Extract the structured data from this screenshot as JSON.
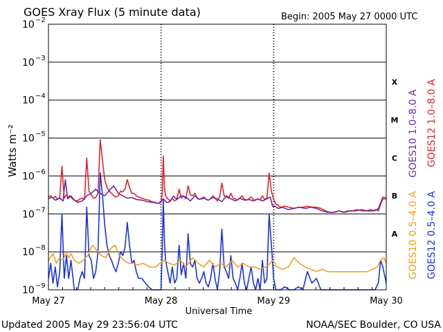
{
  "header": {
    "title": "GOES Xray Flux (5 minute data)",
    "begin": "Begin:  2005 May 27 0000 UTC"
  },
  "footer": {
    "updated": "Updated 2005 May 29 23:56:04 UTC",
    "credit": "NOAA/SEC Boulder, CO USA"
  },
  "chart_data": {
    "type": "line",
    "title": "GOES Xray Flux (5 minute data)",
    "xlabel": "Universal Time",
    "ylabel": "Watts m⁻²",
    "yscale": "log",
    "ylim": [
      1e-09,
      0.01
    ],
    "x_unit": "days since 2005 May 27 0000 UTC",
    "xlim": [
      0,
      3
    ],
    "x_ticks": [
      {
        "label": "May 27",
        "x": 0
      },
      {
        "label": "May 28",
        "x": 1
      },
      {
        "label": "May 29",
        "x": 2
      },
      {
        "label": "May 30",
        "x": 3
      }
    ],
    "y_ticks": [
      {
        "base": "10",
        "exp": "−2",
        "value": 0.01
      },
      {
        "base": "10",
        "exp": "−3",
        "value": 0.001
      },
      {
        "base": "10",
        "exp": "−4",
        "value": 0.0001
      },
      {
        "base": "10",
        "exp": "−5",
        "value": 1e-05
      },
      {
        "base": "10",
        "exp": "−6",
        "value": 1e-06
      },
      {
        "base": "10",
        "exp": "−7",
        "value": 1e-07
      },
      {
        "base": "10",
        "exp": "−8",
        "value": 1e-08
      },
      {
        "base": "10",
        "exp": "−9",
        "value": 1e-09
      }
    ],
    "flare_classes": [
      {
        "label": "X",
        "value": 0.0003
      },
      {
        "label": "M",
        "value": 3e-05
      },
      {
        "label": "C",
        "value": 3e-06
      },
      {
        "label": "B",
        "value": 3e-07
      },
      {
        "label": "A",
        "value": 3e-08
      }
    ],
    "grid": true,
    "legend_position": "right, vertical",
    "colors": {
      "goes10_long": "#6a2aa0",
      "goes12_long": "#e8202a",
      "goes10_short": "#f0a020",
      "goes12_short": "#1830e8",
      "grid": "#000000"
    },
    "series": [
      {
        "name": "GOES10 1.0–8.0 A",
        "color": "#6a2aa0",
        "x": [
          0.0,
          0.03,
          0.06,
          0.1,
          0.13,
          0.15,
          0.17,
          0.19,
          0.22,
          0.26,
          0.3,
          0.34,
          0.38,
          0.42,
          0.45,
          0.5,
          0.55,
          0.58,
          0.62,
          0.66,
          0.7,
          0.74,
          0.78,
          0.83,
          0.88,
          0.93,
          0.98,
          1.02,
          1.05,
          1.08,
          1.11,
          1.14,
          1.18,
          1.22,
          1.26,
          1.3,
          1.34,
          1.38,
          1.42,
          1.46,
          1.5,
          1.54,
          1.58,
          1.62,
          1.66,
          1.7,
          1.74,
          1.78,
          1.82,
          1.86,
          1.9,
          1.94,
          1.97,
          1.99,
          2.01,
          2.04,
          2.08,
          2.13,
          2.18,
          2.23,
          2.28,
          2.33,
          2.38,
          2.43,
          2.48,
          2.53,
          2.58,
          2.63,
          2.68,
          2.73,
          2.78,
          2.83,
          2.88,
          2.91,
          2.93,
          2.95,
          2.97,
          3.0
        ],
        "values": [
          2.5e-07,
          2.8e-07,
          2.3e-07,
          2.6e-07,
          2.2e-07,
          8e-07,
          2.5e-07,
          3e-07,
          2.4e-07,
          2e-07,
          2.2e-07,
          3e-07,
          3.5e-07,
          4.5e-07,
          3.6e-07,
          3e-07,
          4.5e-07,
          5.5e-07,
          3.5e-07,
          3e-07,
          2.6e-07,
          2.7e-07,
          2.4e-07,
          2.3e-07,
          2.1e-07,
          2e-07,
          1.9e-07,
          2.5e-07,
          2e-07,
          2.1e-07,
          3e-07,
          2.4e-07,
          3e-07,
          2.8e-07,
          2.2e-07,
          3e-07,
          2.4e-07,
          2.6e-07,
          2.3e-07,
          2.7e-07,
          2.5e-07,
          2.1e-07,
          3e-07,
          2.5e-07,
          2.2e-07,
          2.6e-07,
          2.3e-07,
          2.4e-07,
          2.2e-07,
          2.5e-07,
          2.2e-07,
          2.5e-07,
          2.8e-07,
          1.6e-07,
          1.6e-07,
          1.4e-07,
          1.5e-07,
          1.3e-07,
          1.4e-07,
          1.5e-07,
          1.4e-07,
          1.5e-07,
          1.4e-07,
          1.2e-07,
          1.1e-07,
          1.1e-07,
          1.2e-07,
          1.1e-07,
          1.2e-07,
          1.2e-07,
          1.3e-07,
          1.2e-07,
          1.2e-07,
          1.3e-07,
          1.2e-07,
          1.8e-07,
          2.5e-07,
          2.5e-07
        ]
      },
      {
        "name": "GOES12 1.0–8.0 A",
        "color": "#e8202a",
        "x": [
          0.0,
          0.02,
          0.04,
          0.06,
          0.08,
          0.1,
          0.12,
          0.14,
          0.16,
          0.18,
          0.2,
          0.23,
          0.26,
          0.28,
          0.3,
          0.32,
          0.34,
          0.36,
          0.38,
          0.4,
          0.42,
          0.44,
          0.46,
          0.48,
          0.5,
          0.52,
          0.54,
          0.56,
          0.58,
          0.6,
          0.62,
          0.64,
          0.66,
          0.68,
          0.7,
          0.72,
          0.74,
          0.76,
          0.78,
          0.8,
          0.83,
          0.86,
          0.89,
          0.92,
          0.95,
          0.98,
          1.0,
          1.01,
          1.02,
          1.03,
          1.04,
          1.06,
          1.08,
          1.1,
          1.12,
          1.14,
          1.16,
          1.18,
          1.2,
          1.22,
          1.24,
          1.26,
          1.28,
          1.3,
          1.32,
          1.34,
          1.36,
          1.38,
          1.4,
          1.42,
          1.44,
          1.46,
          1.48,
          1.5,
          1.52,
          1.54,
          1.56,
          1.58,
          1.6,
          1.62,
          1.64,
          1.66,
          1.68,
          1.7,
          1.72,
          1.74,
          1.76,
          1.78,
          1.8,
          1.82,
          1.84,
          1.86,
          1.88,
          1.9,
          1.92,
          1.94,
          1.96,
          1.98,
          2.0,
          2.02,
          2.04,
          2.06,
          2.1,
          2.14,
          2.18,
          2.22,
          2.26,
          2.3,
          2.34,
          2.38,
          2.42,
          2.46,
          2.5,
          2.54,
          2.58,
          2.62,
          2.66,
          2.7,
          2.74,
          2.78,
          2.82,
          2.86,
          2.9,
          2.93,
          2.95,
          2.97,
          3.0
        ],
        "values": [
          2.8e-07,
          3e-07,
          2.6e-07,
          2.9e-07,
          2.4e-07,
          2.7e-07,
          1.8e-06,
          2.6e-07,
          3.2e-07,
          2.6e-07,
          3e-07,
          2.3e-07,
          2.2e-07,
          2.5e-07,
          2.6e-07,
          2.4e-07,
          3e-06,
          4e-07,
          3.2e-07,
          2.6e-07,
          2.7e-07,
          3.5e-07,
          9e-06,
          2.5e-06,
          8e-07,
          5e-07,
          4e-07,
          3.5e-07,
          3e-07,
          2.8e-07,
          3e-07,
          4e-07,
          3.8e-07,
          4.5e-07,
          8e-07,
          5e-07,
          3.5e-07,
          3.5e-07,
          3e-07,
          2.8e-07,
          2.6e-07,
          2.4e-07,
          2.3e-07,
          2.1e-07,
          2e-07,
          1.9e-07,
          2e-07,
          3.5e-07,
          3.4e-06,
          5e-07,
          3e-07,
          2.5e-07,
          2.2e-07,
          2.6e-07,
          2.2e-07,
          2.4e-07,
          4.5e-07,
          2.6e-07,
          3e-07,
          2.5e-07,
          5.5e-07,
          3.2e-07,
          3e-07,
          3.5e-07,
          2.6e-07,
          2.4e-07,
          2.6e-07,
          2.8e-07,
          2.4e-07,
          2.3e-07,
          2.5e-07,
          3e-07,
          2.6e-07,
          2.2e-07,
          2.8e-07,
          6.5e-07,
          3e-07,
          2.8e-07,
          2.6e-07,
          3.5e-07,
          2.6e-07,
          2.5e-07,
          2.3e-07,
          2.6e-07,
          3e-07,
          2.4e-07,
          2.3e-07,
          2.5e-07,
          2.8e-07,
          2.4e-07,
          2.3e-07,
          2.5e-07,
          2.3e-07,
          3e-07,
          2.4e-07,
          2.6e-07,
          1.2e-06,
          4e-07,
          2.4e-07,
          1.8e-07,
          1.7e-07,
          1.5e-07,
          1.6e-07,
          1.5e-07,
          1.4e-07,
          1.5e-07,
          1.5e-07,
          1.6e-07,
          1.5e-07,
          1.5e-07,
          1.4e-07,
          1.2e-07,
          1.1e-07,
          1.1e-07,
          1.2e-07,
          1.1e-07,
          1.2e-07,
          1.2e-07,
          1.3e-07,
          1.2e-07,
          1.2e-07,
          1.3e-07,
          1.2e-07,
          1.4e-07,
          2e-07,
          2.8e-07,
          2.6e-07
        ]
      },
      {
        "name": "GOES10 0.5–4.0 A",
        "color": "#f0a020",
        "x": [
          0.0,
          0.04,
          0.07,
          0.1,
          0.13,
          0.16,
          0.18,
          0.2,
          0.23,
          0.27,
          0.31,
          0.35,
          0.39,
          0.43,
          0.47,
          0.51,
          0.55,
          0.59,
          0.63,
          0.67,
          0.71,
          0.75,
          0.79,
          0.84,
          0.9,
          0.95,
          0.99,
          1.03,
          1.07,
          1.12,
          1.17,
          1.22,
          1.28,
          1.33,
          1.38,
          1.43,
          1.48,
          1.53,
          1.58,
          1.63,
          1.68,
          1.73,
          1.78,
          1.83,
          1.88,
          1.93,
          1.97,
          1.99,
          2.01,
          2.03,
          2.08,
          2.13,
          2.18,
          2.23,
          2.28,
          2.33,
          2.38,
          2.43,
          2.48,
          2.53,
          2.58,
          2.63,
          2.68,
          2.73,
          2.78,
          2.83,
          2.88,
          2.92,
          2.95,
          2.98,
          3.0
        ],
        "values": [
          6e-09,
          9e-09,
          5e-09,
          7e-09,
          6e-09,
          1e-08,
          7e-09,
          9e-09,
          6e-09,
          5e-09,
          6e-09,
          8e-09,
          1.5e-08,
          1.1e-08,
          8e-09,
          7e-09,
          1.2e-08,
          1.5e-08,
          8e-09,
          6e-09,
          5e-09,
          5e-09,
          4.5e-09,
          5e-09,
          4e-09,
          4e-09,
          5e-09,
          6e-09,
          5e-09,
          4.5e-09,
          6e-09,
          4e-09,
          7e-09,
          5e-09,
          4e-09,
          6e-09,
          4e-09,
          5e-09,
          4e-09,
          6e-09,
          4e-09,
          5e-09,
          4e-09,
          4e-09,
          3.5e-09,
          4e-09,
          5e-09,
          6e-09,
          5e-09,
          4e-09,
          3.5e-09,
          4e-09,
          7e-09,
          5e-09,
          4e-09,
          3.5e-09,
          3e-09,
          3.5e-09,
          3e-09,
          3e-09,
          3e-09,
          3e-09,
          3e-09,
          3e-09,
          3e-09,
          3e-09,
          3.5e-09,
          4e-09,
          6e-09,
          7e-09,
          5e-09
        ]
      },
      {
        "name": "GOES12 0.5–4.0 A",
        "color": "#1830e8",
        "x": [
          0.0,
          0.02,
          0.04,
          0.06,
          0.08,
          0.1,
          0.12,
          0.14,
          0.16,
          0.18,
          0.2,
          0.23,
          0.26,
          0.28,
          0.3,
          0.32,
          0.34,
          0.36,
          0.38,
          0.4,
          0.42,
          0.44,
          0.46,
          0.48,
          0.5,
          0.52,
          0.54,
          0.56,
          0.58,
          0.6,
          0.62,
          0.64,
          0.66,
          0.68,
          0.7,
          0.72,
          0.74,
          0.76,
          0.78,
          0.8,
          0.83,
          0.86,
          0.89,
          0.92,
          0.95,
          0.98,
          1.0,
          1.01,
          1.02,
          1.03,
          1.04,
          1.06,
          1.08,
          1.1,
          1.12,
          1.14,
          1.16,
          1.18,
          1.2,
          1.22,
          1.24,
          1.26,
          1.28,
          1.3,
          1.32,
          1.34,
          1.36,
          1.38,
          1.4,
          1.42,
          1.44,
          1.46,
          1.48,
          1.5,
          1.52,
          1.54,
          1.56,
          1.58,
          1.6,
          1.62,
          1.64,
          1.66,
          1.68,
          1.7,
          1.72,
          1.74,
          1.76,
          1.78,
          1.8,
          1.82,
          1.84,
          1.86,
          1.88,
          1.9,
          1.92,
          1.94,
          1.96,
          1.98,
          2.0,
          2.02,
          2.04,
          2.06,
          2.1,
          2.14,
          2.18,
          2.22,
          2.26,
          2.3,
          2.34,
          2.38,
          2.42,
          2.46,
          2.5,
          2.54,
          2.58,
          2.62,
          2.66,
          2.7,
          2.74,
          2.78,
          2.82,
          2.86,
          2.9,
          2.93,
          2.95,
          2.97,
          3.0
        ],
        "values": [
          2e-09,
          5e-09,
          1.5e-09,
          4e-09,
          1.2e-09,
          3e-09,
          1e-07,
          2e-09,
          8e-09,
          2e-09,
          6e-09,
          1e-09,
          1e-09,
          2e-09,
          3e-09,
          2e-09,
          1.5e-07,
          8e-09,
          6e-09,
          2e-09,
          3e-09,
          1e-08,
          1.2e-06,
          3e-07,
          5e-08,
          1.5e-08,
          8e-09,
          6e-09,
          4e-09,
          3e-09,
          5e-09,
          1e-08,
          8e-09,
          1.3e-08,
          6e-08,
          1.5e-08,
          5e-09,
          6e-09,
          3e-09,
          2e-09,
          2e-09,
          1.5e-09,
          1.2e-09,
          1e-09,
          1e-09,
          1e-09,
          1e-09,
          1e-08,
          2.4e-07,
          2e-08,
          6e-09,
          3e-09,
          1.5e-09,
          4e-09,
          1.5e-09,
          2e-09,
          1.5e-08,
          2.5e-09,
          5e-09,
          2e-09,
          3e-08,
          5e-09,
          4e-09,
          6e-09,
          2e-09,
          1.5e-09,
          2e-09,
          3e-09,
          1.5e-09,
          1.2e-09,
          2e-09,
          5e-09,
          2e-09,
          1e-09,
          3e-09,
          4e-08,
          4e-09,
          3e-09,
          2e-09,
          8e-09,
          2e-09,
          1.5e-09,
          1e-09,
          2e-09,
          5e-09,
          1.5e-09,
          1e-09,
          2e-09,
          4e-09,
          1.5e-09,
          1e-09,
          2e-09,
          1e-09,
          6e-09,
          1.5e-09,
          2e-09,
          1e-07,
          1.5e-08,
          2e-09,
          1e-09,
          1e-09,
          1e-09,
          1.2e-09,
          1e-09,
          1e-09,
          1.2e-09,
          1e-09,
          3e-09,
          1.5e-09,
          2e-09,
          1e-09,
          1e-09,
          1e-09,
          1e-09,
          1e-09,
          1e-09,
          1e-09,
          1e-09,
          1e-09,
          1e-09,
          1e-09,
          1e-09,
          1e-09,
          1.5e-09,
          6e-09,
          4e-09,
          1.5e-09
        ]
      }
    ]
  }
}
